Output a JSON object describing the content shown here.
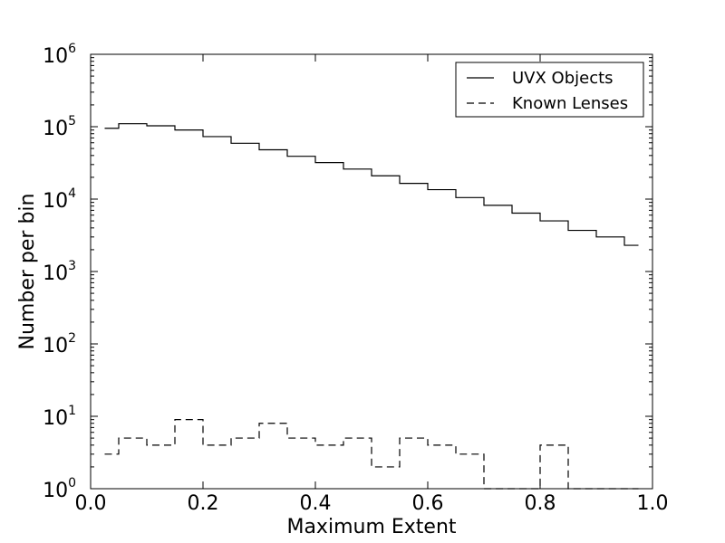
{
  "chart_data": {
    "type": "step",
    "xlabel": "Maximum Extent",
    "ylabel": "Number per bin",
    "xlim": [
      0.0,
      1.0
    ],
    "ylim": [
      1,
      1000000
    ],
    "yscale": "log",
    "x_ticks": [
      "0.0",
      "0.2",
      "0.4",
      "0.6",
      "0.8",
      "1.0"
    ],
    "y_ticks": [
      {
        "base": "10",
        "exp": "0"
      },
      {
        "base": "10",
        "exp": "1"
      },
      {
        "base": "10",
        "exp": "2"
      },
      {
        "base": "10",
        "exp": "3"
      },
      {
        "base": "10",
        "exp": "4"
      },
      {
        "base": "10",
        "exp": "5"
      },
      {
        "base": "10",
        "exp": "6"
      }
    ],
    "legend_position": "top-right",
    "bin_edges": [
      0.025,
      0.05,
      0.1,
      0.15,
      0.2,
      0.25,
      0.3,
      0.35,
      0.4,
      0.45,
      0.5,
      0.55,
      0.6,
      0.65,
      0.7,
      0.75,
      0.8,
      0.85,
      0.9,
      0.95,
      0.975
    ],
    "series": [
      {
        "name": "UVX Objects",
        "style": "solid",
        "values": [
          95000,
          110000,
          103000,
          90000,
          73000,
          59000,
          48000,
          39000,
          32000,
          26000,
          21000,
          16500,
          13500,
          10500,
          8200,
          6400,
          5000,
          3700,
          3000,
          2300
        ]
      },
      {
        "name": "Known Lenses",
        "style": "dashed",
        "values": [
          3,
          5,
          4,
          9,
          4,
          5,
          8,
          5,
          4,
          5,
          2,
          5,
          4,
          3,
          1,
          1,
          4,
          1,
          1,
          1
        ]
      }
    ]
  }
}
